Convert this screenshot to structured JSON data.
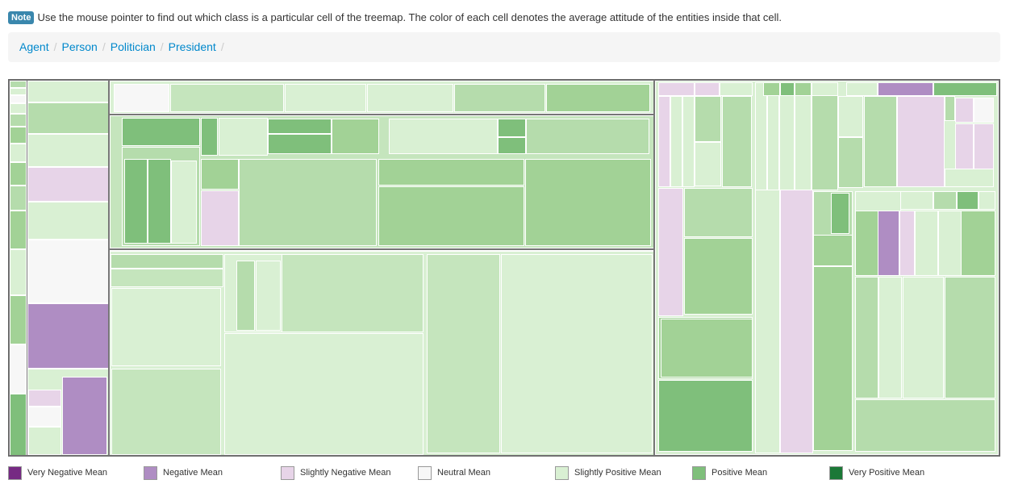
{
  "note": {
    "badge": "Note",
    "text": "Use the mouse pointer to find out which class is a particular cell of the treemap. The color of each cell denotes the average attitude of the entities inside that cell."
  },
  "breadcrumb": {
    "items": [
      {
        "label": "Agent"
      },
      {
        "label": "Person"
      },
      {
        "label": "Politician"
      },
      {
        "label": "President"
      }
    ],
    "separator": "/"
  },
  "colors": {
    "very_negative": "#762a83",
    "negative": "#af8dc3",
    "slightly_negative": "#e7d4e8",
    "neutral": "#f7f7f7",
    "slightly_positive": "#d9f0d3",
    "positive": "#7fbf7b",
    "very_positive": "#1b7837"
  },
  "legend": {
    "items": [
      {
        "label": "Very Negative Mean",
        "color": "#762a83"
      },
      {
        "label": "Negative Mean",
        "color": "#af8dc3"
      },
      {
        "label": "Slightly Negative Mean",
        "color": "#e7d4e8"
      },
      {
        "label": "Neutral Mean",
        "color": "#f7f7f7"
      },
      {
        "label": "Slightly Positive Mean",
        "color": "#d9f0d3"
      },
      {
        "label": "Positive Mean",
        "color": "#7fbf7b"
      },
      {
        "label": "Very Positive Mean",
        "color": "#1b7837"
      }
    ]
  }
}
